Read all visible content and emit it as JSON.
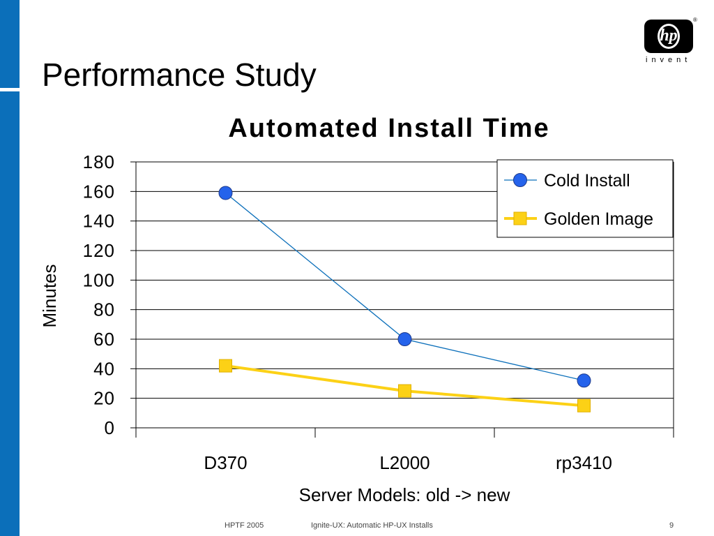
{
  "slide": {
    "title": "Performance Study",
    "logo_text": "hp",
    "logo_tagline": "invent",
    "logo_mark": "®"
  },
  "footer": {
    "left": "HPTF 2005",
    "center": "Ignite-UX: Automatic HP-UX Installs",
    "page": "9"
  },
  "colors": {
    "sidebar": "#0b6fba",
    "cold_install": "#0b6fba",
    "cold_marker": "#2563eb",
    "golden_image": "#fcd116"
  },
  "chart_data": {
    "type": "line",
    "title": "Automated Install Time",
    "xlabel": "Server Models: old -> new",
    "ylabel": "Minutes",
    "categories": [
      "D370",
      "L2000",
      "rp3410"
    ],
    "ylim": [
      0,
      180
    ],
    "yticks": [
      "0",
      "20",
      "40",
      "60",
      "80",
      "100",
      "120",
      "140",
      "160",
      "180"
    ],
    "grid": true,
    "legend_position": "top-right",
    "series": [
      {
        "name": "Cold Install",
        "values": [
          159,
          60,
          32
        ],
        "marker": "circle"
      },
      {
        "name": "Golden Image",
        "values": [
          42,
          25,
          15
        ],
        "marker": "square"
      }
    ]
  }
}
